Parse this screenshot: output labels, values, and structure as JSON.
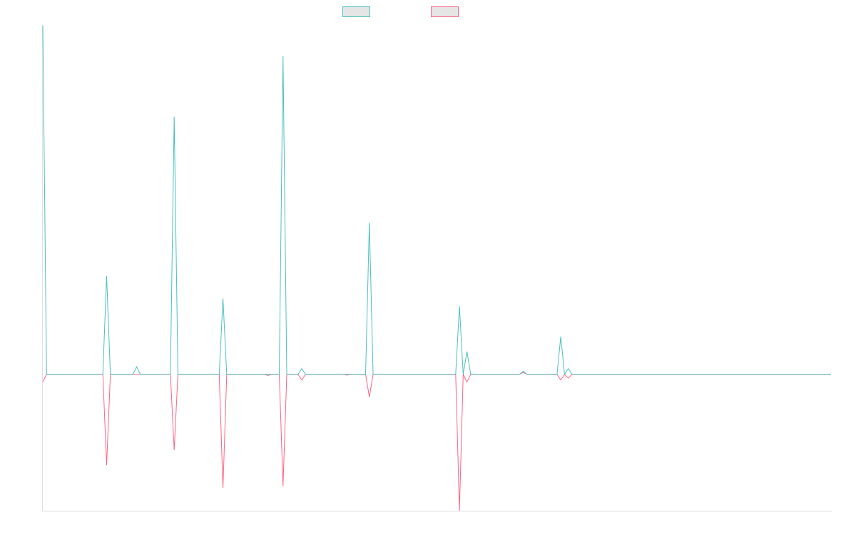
{
  "chart_data": {
    "type": "line",
    "title": "",
    "xlabel": "",
    "ylabel": "",
    "legend_position": "top-center",
    "grid": false,
    "xlim": [
      0,
      210
    ],
    "ylim": [
      -36,
      92
    ],
    "series": [
      {
        "name": "",
        "color": "#4bc0c0",
        "points": [
          [
            0,
            92
          ],
          [
            1,
            0
          ],
          [
            16,
            0
          ],
          [
            17,
            26
          ],
          [
            18,
            0
          ],
          [
            24,
            0
          ],
          [
            25,
            2
          ],
          [
            26,
            0
          ],
          [
            34,
            0
          ],
          [
            35,
            68
          ],
          [
            36,
            0
          ],
          [
            47,
            0
          ],
          [
            48,
            20
          ],
          [
            49,
            0
          ],
          [
            59,
            0
          ],
          [
            60,
            0
          ],
          [
            61,
            0
          ],
          [
            63,
            0
          ],
          [
            64,
            84
          ],
          [
            65,
            0
          ],
          [
            68,
            0
          ],
          [
            69,
            1.5
          ],
          [
            70,
            0
          ],
          [
            86,
            0
          ],
          [
            87,
            40
          ],
          [
            88,
            0
          ],
          [
            110,
            0
          ],
          [
            111,
            18
          ],
          [
            112,
            0
          ],
          [
            113,
            6
          ],
          [
            114,
            0
          ],
          [
            127,
            0
          ],
          [
            128,
            0.8
          ],
          [
            129,
            0
          ],
          [
            137,
            0
          ],
          [
            138,
            10
          ],
          [
            139,
            0
          ],
          [
            140,
            1.5
          ],
          [
            141,
            0
          ],
          [
            210,
            0
          ]
        ]
      },
      {
        "name": "",
        "color": "#ff6384",
        "points": [
          [
            0,
            -2
          ],
          [
            1,
            0
          ],
          [
            16,
            0
          ],
          [
            17,
            -24
          ],
          [
            18,
            0
          ],
          [
            34,
            0
          ],
          [
            35,
            -20
          ],
          [
            36,
            0
          ],
          [
            47,
            0
          ],
          [
            48,
            -30
          ],
          [
            49,
            0
          ],
          [
            59,
            0
          ],
          [
            60,
            -0.3
          ],
          [
            61,
            0
          ],
          [
            63,
            0
          ],
          [
            64,
            -29.5
          ],
          [
            65,
            0
          ],
          [
            68,
            0
          ],
          [
            69,
            -1.5
          ],
          [
            70,
            0
          ],
          [
            80,
            0
          ],
          [
            81,
            -0.2
          ],
          [
            82,
            0
          ],
          [
            86,
            0
          ],
          [
            87,
            -6
          ],
          [
            88,
            0
          ],
          [
            110,
            0
          ],
          [
            111,
            -36
          ],
          [
            112,
            0
          ],
          [
            113,
            -2
          ],
          [
            114,
            0
          ],
          [
            127,
            0
          ],
          [
            128,
            0.5
          ],
          [
            129,
            0
          ],
          [
            137,
            0
          ],
          [
            138,
            -1.5
          ],
          [
            139,
            0
          ],
          [
            140,
            -1
          ],
          [
            141,
            0
          ],
          [
            210,
            0
          ]
        ]
      }
    ]
  }
}
